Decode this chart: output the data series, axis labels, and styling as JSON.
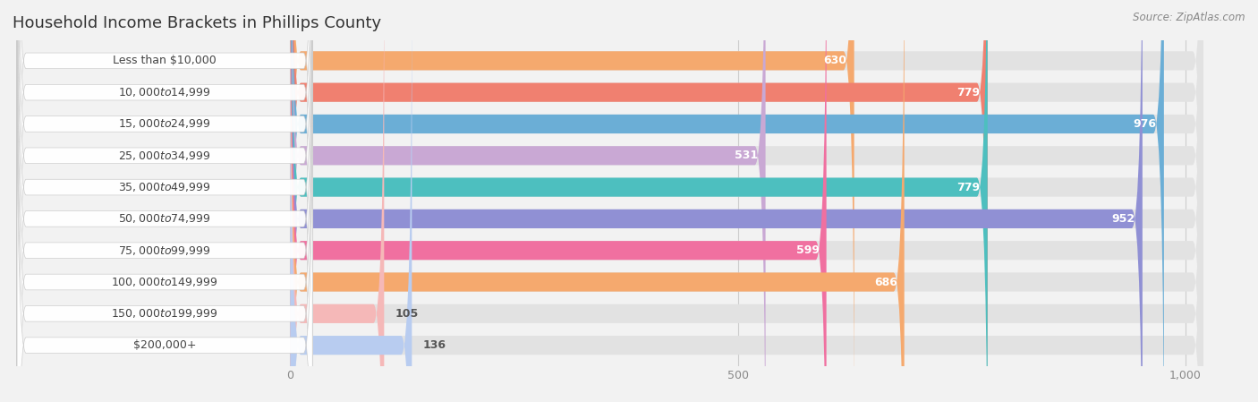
{
  "title": "Household Income Brackets in Phillips County",
  "source": "Source: ZipAtlas.com",
  "categories": [
    "Less than $10,000",
    "$10,000 to $14,999",
    "$15,000 to $24,999",
    "$25,000 to $34,999",
    "$35,000 to $49,999",
    "$50,000 to $74,999",
    "$75,000 to $99,999",
    "$100,000 to $149,999",
    "$150,000 to $199,999",
    "$200,000+"
  ],
  "values": [
    630,
    779,
    976,
    531,
    779,
    952,
    599,
    686,
    105,
    136
  ],
  "colors": [
    "#F5A96E",
    "#F08070",
    "#6BAED6",
    "#C9A8D4",
    "#4DBFBF",
    "#9090D4",
    "#F070A0",
    "#F5A96E",
    "#F5B8B8",
    "#B8CCF0"
  ],
  "xlim": [
    -310,
    1060
  ],
  "xticks": [
    0,
    500,
    1000
  ],
  "xticklabels": [
    "0",
    "500",
    "1,000"
  ],
  "bar_height": 0.6,
  "background_color": "#f2f2f2",
  "bar_bg_color": "#e2e2e2",
  "label_color_inside": "#ffffff",
  "label_color_outside": "#555555",
  "label_threshold": 200,
  "title_fontsize": 13,
  "source_fontsize": 8.5,
  "cat_fontsize": 9,
  "val_fontsize": 9
}
